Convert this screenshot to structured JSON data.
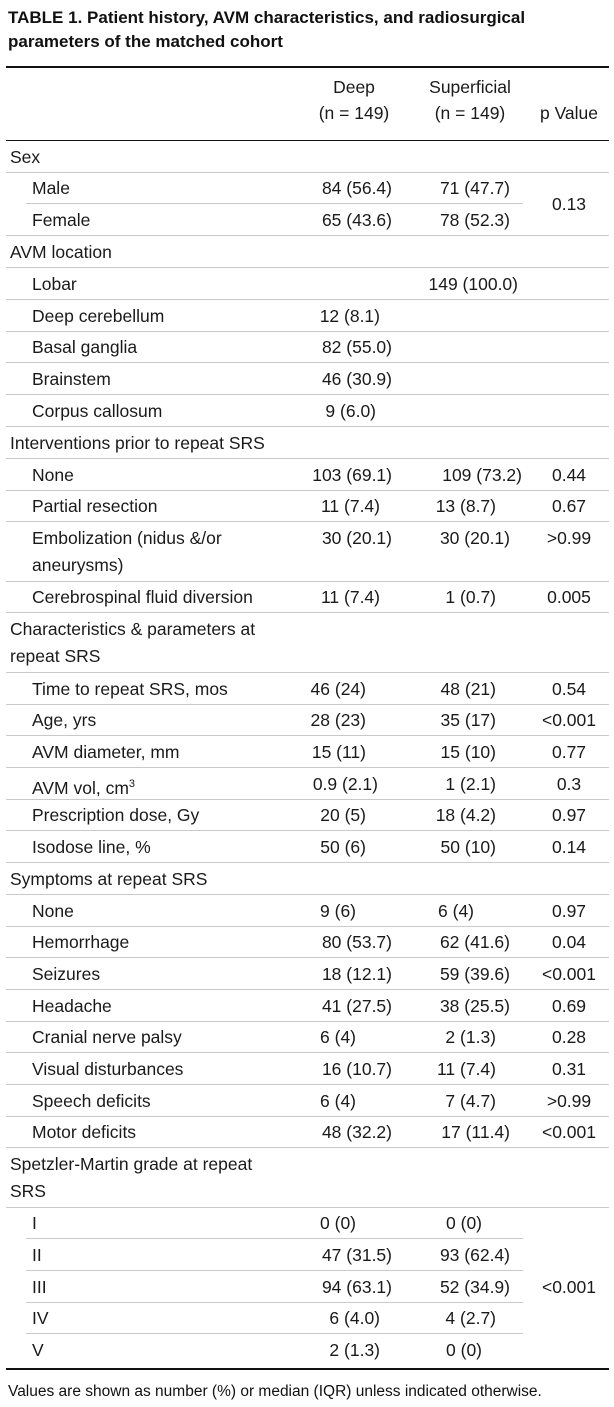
{
  "table": {
    "title_line1": "TABLE 1. Patient history, AVM characteristics, and radiosurgical",
    "title_line2": "parameters of the matched cohort",
    "headers": {
      "deep_1": "Deep",
      "deep_2": "(n = 149)",
      "sup_1": "Superficial",
      "sup_2": "(n = 149)",
      "p": "p Value"
    },
    "sex": {
      "label": "Sex",
      "male": {
        "label": "Male",
        "deep": "84 (56.4)",
        "sup": "71 (47.7)"
      },
      "female": {
        "label": "Female",
        "deep": "65 (43.6)",
        "sup": "78 (52.3)"
      },
      "p": "0.13"
    },
    "location": {
      "label": "AVM location",
      "lobar": {
        "label": "Lobar",
        "deep": "",
        "sup": "149 (100.0)"
      },
      "cerebellum": {
        "label": "Deep cerebellum",
        "deep": "12 (8.1)",
        "sup": ""
      },
      "basal": {
        "label": "Basal ganglia",
        "deep": "82 (55.0)",
        "sup": ""
      },
      "brainstem": {
        "label": "Brainstem",
        "deep": "46 (30.9)",
        "sup": ""
      },
      "callosum": {
        "label": "Corpus callosum",
        "deep": "9 (6.0)",
        "sup": ""
      }
    },
    "interventions": {
      "label": "Interventions prior to repeat SRS",
      "none": {
        "label": "None",
        "deep": "103 (69.1)",
        "sup": "109 (73.2)",
        "p": "0.44"
      },
      "resection": {
        "label": "Partial resection",
        "deep": "11 (7.4)",
        "sup": "13 (8.7)",
        "p": "0.67"
      },
      "embol1": "Embolization (nidus &/or",
      "embol2": "aneurysms)",
      "embol": {
        "deep": "30 (20.1)",
        "sup": "30 (20.1)",
        "p": ">0.99"
      },
      "csf": {
        "label": "Cerebrospinal fluid diversion",
        "deep": "11 (7.4)",
        "sup": "1 (0.7)",
        "p": "0.005"
      }
    },
    "characteristics": {
      "label1": "Characteristics & parameters at",
      "label2": "repeat SRS",
      "time": {
        "label": "Time to repeat SRS, mos",
        "deep": "46 (24)",
        "sup": "48 (21)",
        "p": "0.54"
      },
      "age": {
        "label": "Age, yrs",
        "deep": "28 (23)",
        "sup": "35 (17)",
        "p": "<0.001"
      },
      "diameter": {
        "label": "AVM diameter, mm",
        "deep": "15 (11)",
        "sup": "15 (10)",
        "p": "0.77"
      },
      "vol": {
        "label": "AVM vol, cm",
        "sup_exp": "3",
        "deep": "0.9 (2.1)",
        "sup": "1 (2.1)",
        "p": "0.3"
      },
      "dose": {
        "label": "Prescription dose, Gy",
        "deep": "20 (5)",
        "sup": "18 (4.2)",
        "p": "0.97"
      },
      "isodose": {
        "label": "Isodose line, %",
        "deep": "50 (6)",
        "sup": "50 (10)",
        "p": "0.14"
      }
    },
    "symptoms": {
      "label": "Symptoms at repeat SRS",
      "none": {
        "label": "None",
        "deep": "9 (6)",
        "sup": "6 (4)",
        "p": "0.97"
      },
      "hem": {
        "label": "Hemorrhage",
        "deep": "80 (53.7)",
        "sup": "62 (41.6)",
        "p": "0.04"
      },
      "seiz": {
        "label": "Seizures",
        "deep": "18 (12.1)",
        "sup": "59 (39.6)",
        "p": "<0.001"
      },
      "head": {
        "label": "Headache",
        "deep": "41 (27.5)",
        "sup": "38 (25.5)",
        "p": "0.69"
      },
      "cranial": {
        "label": "Cranial nerve palsy",
        "deep": "6 (4)",
        "sup": "2 (1.3)",
        "p": "0.28"
      },
      "visual": {
        "label": "Visual disturbances",
        "deep": "16 (10.7)",
        "sup": "11 (7.4)",
        "p": "0.31"
      },
      "speech": {
        "label": "Speech deficits",
        "deep": "6 (4)",
        "sup": "7 (4.7)",
        "p": ">0.99"
      },
      "motor": {
        "label": "Motor deficits",
        "deep": "48 (32.2)",
        "sup": "17 (11.4)",
        "p": "<0.001"
      }
    },
    "spetzler": {
      "label1": "Spetzler-Martin grade at repeat",
      "label2": "SRS",
      "g1": {
        "label": "I",
        "deep": "0 (0)",
        "sup": "0 (0)"
      },
      "g2": {
        "label": "II",
        "deep": "47 (31.5)",
        "sup": "93 (62.4)"
      },
      "g3": {
        "label": "III",
        "deep": "94 (63.1)",
        "sup": "52 (34.9)"
      },
      "g4": {
        "label": "IV",
        "deep": "6 (4.0)",
        "sup": "4 (2.7)"
      },
      "g5": {
        "label": "V",
        "deep": "2 (1.3)",
        "sup": "0 (0)"
      },
      "p": "<0.001"
    },
    "footnote": "Values are shown as number (%) or median (IQR) unless indicated otherwise."
  }
}
